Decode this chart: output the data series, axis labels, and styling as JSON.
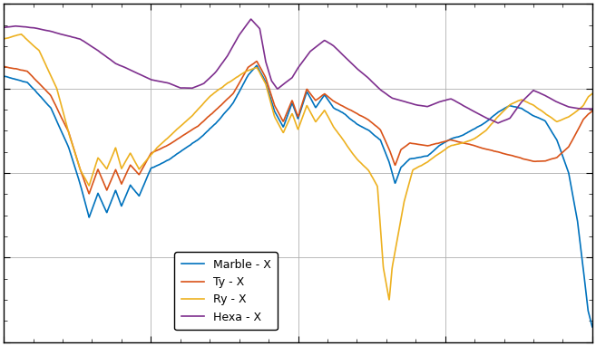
{
  "colors": {
    "marble": "#0072BD",
    "ty": "#D95319",
    "ry": "#EDB120",
    "hexa": "#7E2F8E"
  },
  "legend_labels": [
    "Marble - X",
    "Ty - X",
    "Ry - X",
    "Hexa - X"
  ],
  "background_color": "#ffffff",
  "axes_bg_color": "#ffffff",
  "grid_color": "#b0b0b0",
  "text_color": "#000000",
  "line_width": 1.2,
  "figsize": [
    6.57,
    3.82
  ],
  "dpi": 100
}
